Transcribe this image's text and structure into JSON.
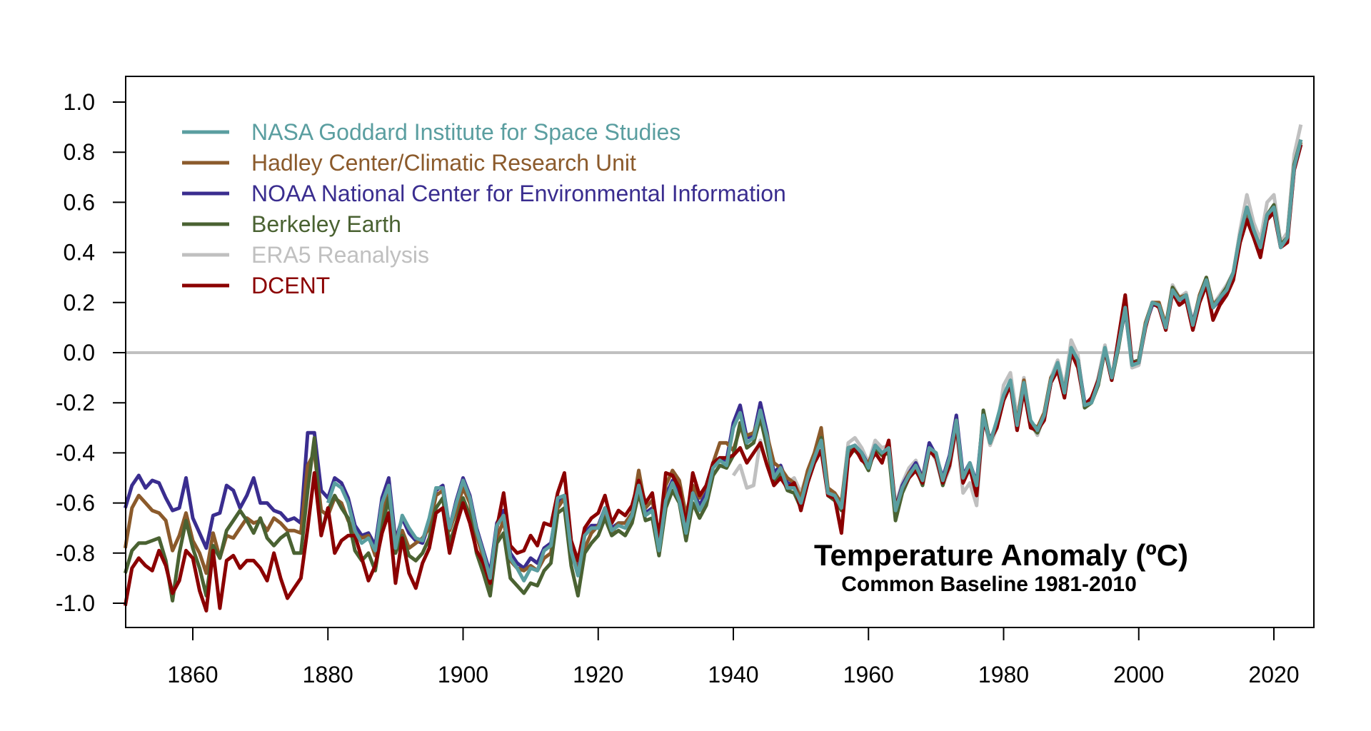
{
  "chart_data": {
    "type": "line",
    "title": "Temperature Anomaly (ºC)",
    "subtitle": "Common Baseline 1981-2010",
    "xlabel": "",
    "ylabel": "",
    "xlim": [
      1850,
      2026
    ],
    "ylim": [
      -1.1,
      1.1
    ],
    "x_ticks": [
      1860,
      1880,
      1900,
      1920,
      1940,
      1960,
      1980,
      2000,
      2020
    ],
    "y_ticks": [
      1.0,
      0.8,
      0.6,
      0.4,
      0.2,
      0.0,
      -0.2,
      -0.4,
      -0.6,
      -0.8,
      -1.0
    ],
    "y_tick_labels": [
      "1.0",
      "0.8",
      "0.6",
      "0.4",
      "0.2",
      "0.0",
      "-0.2",
      "-0.4",
      "-0.6",
      "-0.8",
      "-1.0"
    ],
    "reference_line": {
      "y": 0.0,
      "color": "#c0c0c0"
    },
    "grid": false,
    "legend_position": "top-left",
    "series": [
      {
        "name": "NASA Goddard Institute for Space Studies",
        "color": "#5a9ea0",
        "start_year": 1880,
        "values": [
          -0.6,
          -0.52,
          -0.54,
          -0.6,
          -0.71,
          -0.76,
          -0.74,
          -0.79,
          -0.6,
          -0.53,
          -0.78,
          -0.65,
          -0.7,
          -0.74,
          -0.75,
          -0.66,
          -0.54,
          -0.54,
          -0.7,
          -0.6,
          -0.51,
          -0.58,
          -0.71,
          -0.8,
          -0.9,
          -0.69,
          -0.65,
          -0.82,
          -0.86,
          -0.91,
          -0.86,
          -0.87,
          -0.79,
          -0.77,
          -0.58,
          -0.57,
          -0.79,
          -0.89,
          -0.73,
          -0.7,
          -0.7,
          -0.62,
          -0.71,
          -0.69,
          -0.7,
          -0.65,
          -0.53,
          -0.65,
          -0.63,
          -0.79,
          -0.59,
          -0.52,
          -0.59,
          -0.72,
          -0.56,
          -0.63,
          -0.58,
          -0.46,
          -0.43,
          -0.45,
          -0.3,
          -0.24,
          -0.36,
          -0.34,
          -0.23,
          -0.34,
          -0.5,
          -0.46,
          -0.54,
          -0.54,
          -0.6,
          -0.5,
          -0.42,
          -0.35,
          -0.56,
          -0.57,
          -0.62,
          -0.38,
          -0.37,
          -0.4,
          -0.46,
          -0.37,
          -0.4,
          -0.38,
          -0.63,
          -0.54,
          -0.49,
          -0.45,
          -0.51,
          -0.38,
          -0.4,
          -0.51,
          -0.42,
          -0.27,
          -0.5,
          -0.44,
          -0.53,
          -0.25,
          -0.36,
          -0.27,
          -0.17,
          -0.11,
          -0.29,
          -0.12,
          -0.27,
          -0.31,
          -0.25,
          -0.11,
          -0.04,
          -0.16,
          0.02,
          -0.03,
          -0.21,
          -0.2,
          -0.12,
          0.02,
          -0.1,
          0.03,
          0.18,
          -0.05,
          -0.04,
          0.11,
          0.2,
          0.19,
          0.1,
          0.25,
          0.21,
          0.23,
          0.11,
          0.22,
          0.29,
          0.18,
          0.22,
          0.25,
          0.32,
          0.47,
          0.58,
          0.49,
          0.42,
          0.55,
          0.58,
          0.42,
          0.46,
          0.74,
          0.85
        ]
      },
      {
        "name": "Hadley Center/Climatic Research Unit",
        "color": "#8b5a2b",
        "start_year": 1850,
        "values": [
          -0.78,
          -0.62,
          -0.57,
          -0.6,
          -0.63,
          -0.64,
          -0.67,
          -0.79,
          -0.73,
          -0.64,
          -0.75,
          -0.8,
          -0.88,
          -0.72,
          -0.82,
          -0.73,
          -0.74,
          -0.7,
          -0.66,
          -0.68,
          -0.67,
          -0.71,
          -0.66,
          -0.68,
          -0.71,
          -0.71,
          -0.72,
          -0.45,
          -0.4,
          -0.63,
          -0.65,
          -0.58,
          -0.6,
          -0.67,
          -0.72,
          -0.74,
          -0.73,
          -0.81,
          -0.66,
          -0.55,
          -0.76,
          -0.71,
          -0.78,
          -0.76,
          -0.74,
          -0.7,
          -0.57,
          -0.55,
          -0.71,
          -0.63,
          -0.54,
          -0.6,
          -0.73,
          -0.82,
          -0.94,
          -0.74,
          -0.67,
          -0.83,
          -0.86,
          -0.87,
          -0.85,
          -0.87,
          -0.82,
          -0.8,
          -0.62,
          -0.58,
          -0.77,
          -0.88,
          -0.78,
          -0.72,
          -0.69,
          -0.64,
          -0.72,
          -0.68,
          -0.68,
          -0.64,
          -0.47,
          -0.62,
          -0.59,
          -0.73,
          -0.53,
          -0.47,
          -0.51,
          -0.65,
          -0.53,
          -0.58,
          -0.53,
          -0.44,
          -0.36,
          -0.36,
          -0.39,
          -0.3,
          -0.33,
          -0.32,
          -0.25,
          -0.33,
          -0.44,
          -0.46,
          -0.5,
          -0.52,
          -0.58,
          -0.47,
          -0.4,
          -0.3,
          -0.54,
          -0.56,
          -0.6,
          -0.38,
          -0.38,
          -0.42,
          -0.44,
          -0.38,
          -0.4,
          -0.39,
          -0.63,
          -0.55,
          -0.48,
          -0.46,
          -0.5,
          -0.39,
          -0.41,
          -0.52,
          -0.43,
          -0.27,
          -0.51,
          -0.45,
          -0.54,
          -0.25,
          -0.36,
          -0.28,
          -0.18,
          -0.12,
          -0.28,
          -0.11,
          -0.28,
          -0.3,
          -0.24,
          -0.1,
          -0.06,
          -0.15,
          0.01,
          -0.03,
          -0.21,
          -0.19,
          -0.11,
          0.01,
          -0.1,
          0.04,
          0.18,
          -0.04,
          -0.03,
          0.12,
          0.2,
          0.2,
          0.11,
          0.26,
          0.22,
          0.23,
          0.11,
          0.23,
          0.3,
          0.19,
          0.22,
          0.25,
          0.32,
          0.46,
          0.57,
          0.48,
          0.42,
          0.55,
          0.58,
          0.43,
          0.46,
          0.74,
          0.84
        ]
      },
      {
        "name": "NOAA National Center for Environmental Information",
        "color": "#3a2d8f",
        "start_year": 1850,
        "values": [
          -0.62,
          -0.53,
          -0.49,
          -0.54,
          -0.51,
          -0.52,
          -0.58,
          -0.63,
          -0.62,
          -0.5,
          -0.66,
          -0.72,
          -0.78,
          -0.65,
          -0.64,
          -0.53,
          -0.55,
          -0.62,
          -0.57,
          -0.5,
          -0.6,
          -0.6,
          -0.63,
          -0.64,
          -0.67,
          -0.66,
          -0.68,
          -0.32,
          -0.32,
          -0.55,
          -0.58,
          -0.5,
          -0.52,
          -0.58,
          -0.69,
          -0.73,
          -0.72,
          -0.77,
          -0.58,
          -0.5,
          -0.75,
          -0.66,
          -0.72,
          -0.75,
          -0.76,
          -0.68,
          -0.55,
          -0.53,
          -0.7,
          -0.59,
          -0.5,
          -0.57,
          -0.7,
          -0.79,
          -0.88,
          -0.68,
          -0.63,
          -0.8,
          -0.84,
          -0.86,
          -0.82,
          -0.84,
          -0.78,
          -0.76,
          -0.6,
          -0.57,
          -0.78,
          -0.87,
          -0.72,
          -0.69,
          -0.69,
          -0.62,
          -0.7,
          -0.68,
          -0.68,
          -0.64,
          -0.52,
          -0.64,
          -0.62,
          -0.77,
          -0.57,
          -0.51,
          -0.57,
          -0.7,
          -0.55,
          -0.61,
          -0.56,
          -0.44,
          -0.42,
          -0.43,
          -0.28,
          -0.21,
          -0.34,
          -0.33,
          -0.2,
          -0.32,
          -0.48,
          -0.45,
          -0.52,
          -0.53,
          -0.59,
          -0.49,
          -0.41,
          -0.34,
          -0.55,
          -0.56,
          -0.61,
          -0.39,
          -0.37,
          -0.4,
          -0.45,
          -0.37,
          -0.4,
          -0.38,
          -0.62,
          -0.53,
          -0.48,
          -0.44,
          -0.5,
          -0.36,
          -0.41,
          -0.5,
          -0.41,
          -0.25,
          -0.49,
          -0.44,
          -0.52,
          -0.25,
          -0.35,
          -0.28,
          -0.18,
          -0.13,
          -0.29,
          -0.13,
          -0.28,
          -0.31,
          -0.26,
          -0.12,
          -0.06,
          -0.17,
          0.01,
          -0.03,
          -0.2,
          -0.19,
          -0.12,
          0.01,
          -0.1,
          0.03,
          0.17,
          -0.04,
          -0.03,
          0.11,
          0.19,
          0.19,
          0.11,
          0.25,
          0.21,
          0.22,
          0.12,
          0.22,
          0.28,
          0.18,
          0.21,
          0.25,
          0.31,
          0.46,
          0.56,
          0.49,
          0.41,
          0.54,
          0.57,
          0.42,
          0.45,
          0.73,
          0.83
        ]
      },
      {
        "name": "Berkeley Earth",
        "color": "#4a6232",
        "start_year": 1850,
        "values": [
          -0.88,
          -0.79,
          -0.76,
          -0.76,
          -0.75,
          -0.74,
          -0.83,
          -0.99,
          -0.8,
          -0.67,
          -0.78,
          -0.86,
          -0.97,
          -0.77,
          -0.82,
          -0.71,
          -0.67,
          -0.63,
          -0.67,
          -0.72,
          -0.66,
          -0.74,
          -0.77,
          -0.74,
          -0.72,
          -0.8,
          -0.8,
          -0.55,
          -0.34,
          -0.72,
          -0.63,
          -0.57,
          -0.62,
          -0.66,
          -0.79,
          -0.83,
          -0.8,
          -0.87,
          -0.7,
          -0.58,
          -0.8,
          -0.73,
          -0.81,
          -0.83,
          -0.8,
          -0.74,
          -0.62,
          -0.58,
          -0.76,
          -0.68,
          -0.58,
          -0.65,
          -0.8,
          -0.88,
          -0.97,
          -0.76,
          -0.72,
          -0.9,
          -0.93,
          -0.96,
          -0.92,
          -0.93,
          -0.87,
          -0.84,
          -0.64,
          -0.62,
          -0.85,
          -0.97,
          -0.8,
          -0.76,
          -0.73,
          -0.66,
          -0.73,
          -0.71,
          -0.73,
          -0.68,
          -0.56,
          -0.67,
          -0.66,
          -0.81,
          -0.62,
          -0.55,
          -0.6,
          -0.75,
          -0.6,
          -0.66,
          -0.61,
          -0.49,
          -0.45,
          -0.46,
          -0.41,
          -0.28,
          -0.38,
          -0.36,
          -0.26,
          -0.38,
          -0.51,
          -0.48,
          -0.55,
          -0.56,
          -0.62,
          -0.52,
          -0.43,
          -0.34,
          -0.57,
          -0.59,
          -0.63,
          -0.4,
          -0.39,
          -0.42,
          -0.47,
          -0.38,
          -0.41,
          -0.4,
          -0.67,
          -0.56,
          -0.5,
          -0.46,
          -0.53,
          -0.39,
          -0.41,
          -0.53,
          -0.43,
          -0.27,
          -0.51,
          -0.46,
          -0.55,
          -0.23,
          -0.36,
          -0.28,
          -0.18,
          -0.12,
          -0.3,
          -0.13,
          -0.29,
          -0.32,
          -0.26,
          -0.11,
          -0.05,
          -0.17,
          0.01,
          -0.04,
          -0.22,
          -0.2,
          -0.13,
          0.01,
          -0.11,
          0.02,
          0.18,
          -0.04,
          -0.03,
          0.11,
          0.2,
          0.19,
          0.1,
          0.26,
          0.21,
          0.23,
          0.11,
          0.22,
          0.3,
          0.18,
          0.22,
          0.26,
          0.32,
          0.47,
          0.58,
          0.49,
          0.42,
          0.55,
          0.59,
          0.43,
          0.46,
          0.75,
          0.85
        ]
      },
      {
        "name": "ERA5 Reanalysis",
        "color": "#c0c0c0",
        "start_year": 1940,
        "values": [
          -0.49,
          -0.45,
          -0.54,
          -0.53,
          -0.35,
          -0.45,
          -0.48,
          -0.46,
          -0.52,
          -0.5,
          -0.56,
          -0.48,
          -0.43,
          -0.36,
          -0.55,
          -0.56,
          -0.6,
          -0.36,
          -0.34,
          -0.38,
          -0.44,
          -0.35,
          -0.38,
          -0.37,
          -0.61,
          -0.52,
          -0.46,
          -0.43,
          -0.5,
          -0.38,
          -0.43,
          -0.53,
          -0.46,
          -0.3,
          -0.56,
          -0.52,
          -0.61,
          -0.26,
          -0.37,
          -0.3,
          -0.13,
          -0.08,
          -0.26,
          -0.1,
          -0.28,
          -0.33,
          -0.25,
          -0.1,
          -0.03,
          -0.14,
          0.05,
          -0.01,
          -0.22,
          -0.19,
          -0.1,
          0.03,
          -0.11,
          0.03,
          0.17,
          -0.06,
          -0.05,
          0.11,
          0.19,
          0.19,
          0.11,
          0.27,
          0.22,
          0.24,
          0.12,
          0.23,
          0.3,
          0.19,
          0.23,
          0.27,
          0.32,
          0.49,
          0.63,
          0.52,
          0.45,
          0.6,
          0.63,
          0.44,
          0.48,
          0.79,
          0.91
        ]
      },
      {
        "name": "DCENT",
        "color": "#8b0000",
        "start_year": 1850,
        "values": [
          -1.01,
          -0.86,
          -0.82,
          -0.85,
          -0.87,
          -0.79,
          -0.85,
          -0.96,
          -0.91,
          -0.79,
          -0.82,
          -0.95,
          -1.03,
          -0.79,
          -1.02,
          -0.83,
          -0.81,
          -0.86,
          -0.83,
          -0.83,
          -0.86,
          -0.91,
          -0.8,
          -0.9,
          -0.98,
          -0.94,
          -0.9,
          -0.7,
          -0.48,
          -0.73,
          -0.62,
          -0.8,
          -0.75,
          -0.73,
          -0.73,
          -0.82,
          -0.91,
          -0.85,
          -0.72,
          -0.64,
          -0.92,
          -0.74,
          -0.88,
          -0.94,
          -0.84,
          -0.78,
          -0.64,
          -0.62,
          -0.8,
          -0.69,
          -0.6,
          -0.68,
          -0.79,
          -0.84,
          -0.92,
          -0.7,
          -0.56,
          -0.77,
          -0.8,
          -0.79,
          -0.73,
          -0.77,
          -0.68,
          -0.69,
          -0.56,
          -0.48,
          -0.75,
          -0.83,
          -0.7,
          -0.66,
          -0.64,
          -0.57,
          -0.68,
          -0.63,
          -0.65,
          -0.61,
          -0.51,
          -0.6,
          -0.56,
          -0.74,
          -0.48,
          -0.49,
          -0.54,
          -0.69,
          -0.48,
          -0.57,
          -0.53,
          -0.44,
          -0.42,
          -0.42,
          -0.41,
          -0.38,
          -0.44,
          -0.4,
          -0.36,
          -0.45,
          -0.53,
          -0.5,
          -0.54,
          -0.52,
          -0.63,
          -0.52,
          -0.44,
          -0.39,
          -0.57,
          -0.58,
          -0.72,
          -0.42,
          -0.38,
          -0.43,
          -0.45,
          -0.4,
          -0.44,
          -0.35,
          -0.62,
          -0.54,
          -0.5,
          -0.47,
          -0.52,
          -0.39,
          -0.42,
          -0.52,
          -0.45,
          -0.29,
          -0.52,
          -0.46,
          -0.57,
          -0.27,
          -0.35,
          -0.3,
          -0.19,
          -0.13,
          -0.31,
          -0.15,
          -0.3,
          -0.31,
          -0.27,
          -0.12,
          -0.07,
          -0.18,
          0.0,
          -0.06,
          -0.21,
          -0.18,
          -0.11,
          0.01,
          -0.11,
          0.06,
          0.23,
          -0.04,
          -0.04,
          0.1,
          0.2,
          0.18,
          0.09,
          0.24,
          0.19,
          0.21,
          0.09,
          0.2,
          0.27,
          0.13,
          0.19,
          0.23,
          0.29,
          0.44,
          0.53,
          0.46,
          0.38,
          0.53,
          0.56,
          0.42,
          0.44,
          0.73,
          0.83
        ]
      }
    ],
    "draw_order": [
      "ERA5 Reanalysis",
      "NOAA National Center for Environmental Information",
      "Hadley Center/Climatic Research Unit",
      "Berkeley Earth",
      "DCENT",
      "NASA Goddard Institute for Space Studies"
    ],
    "legend_order": [
      "NASA Goddard Institute for Space Studies",
      "Hadley Center/Climatic Research Unit",
      "NOAA National Center for Environmental Information",
      "Berkeley Earth",
      "ERA5 Reanalysis",
      "DCENT"
    ]
  }
}
